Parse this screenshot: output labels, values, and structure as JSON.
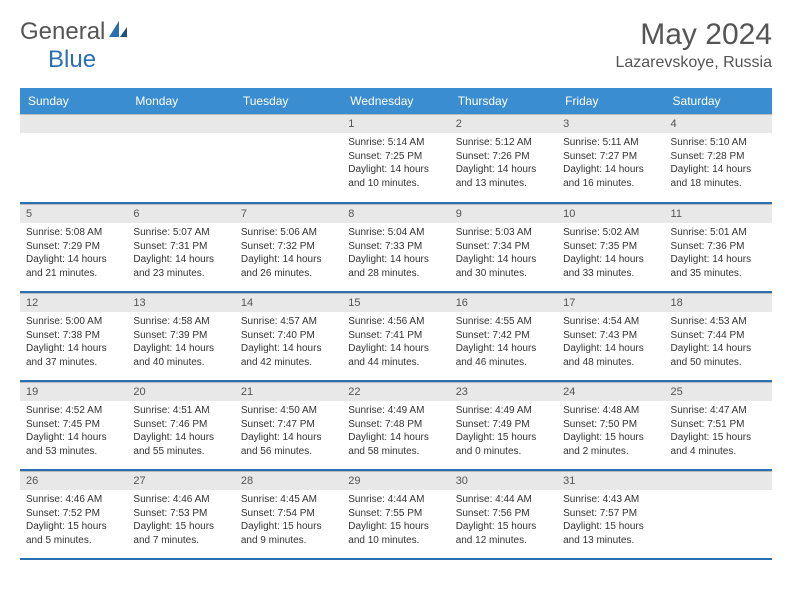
{
  "brand": {
    "general": "General",
    "blue": "Blue"
  },
  "title": "May 2024",
  "location": "Lazarevskoye, Russia",
  "colors": {
    "header_bg": "#3a8dd0",
    "header_text": "#ffffff",
    "daynum_bg": "#e8e8e8",
    "separator": "#2b6fb0",
    "body_text": "#333333",
    "title_text": "#555555",
    "brand_blue": "#2b6fb0",
    "brand_gray": "#555555"
  },
  "day_headers": [
    "Sunday",
    "Monday",
    "Tuesday",
    "Wednesday",
    "Thursday",
    "Friday",
    "Saturday"
  ],
  "weeks": [
    [
      {
        "n": "",
        "sr": "",
        "ss": "",
        "dl": ""
      },
      {
        "n": "",
        "sr": "",
        "ss": "",
        "dl": ""
      },
      {
        "n": "",
        "sr": "",
        "ss": "",
        "dl": ""
      },
      {
        "n": "1",
        "sr": "Sunrise: 5:14 AM",
        "ss": "Sunset: 7:25 PM",
        "dl": "Daylight: 14 hours and 10 minutes."
      },
      {
        "n": "2",
        "sr": "Sunrise: 5:12 AM",
        "ss": "Sunset: 7:26 PM",
        "dl": "Daylight: 14 hours and 13 minutes."
      },
      {
        "n": "3",
        "sr": "Sunrise: 5:11 AM",
        "ss": "Sunset: 7:27 PM",
        "dl": "Daylight: 14 hours and 16 minutes."
      },
      {
        "n": "4",
        "sr": "Sunrise: 5:10 AM",
        "ss": "Sunset: 7:28 PM",
        "dl": "Daylight: 14 hours and 18 minutes."
      }
    ],
    [
      {
        "n": "5",
        "sr": "Sunrise: 5:08 AM",
        "ss": "Sunset: 7:29 PM",
        "dl": "Daylight: 14 hours and 21 minutes."
      },
      {
        "n": "6",
        "sr": "Sunrise: 5:07 AM",
        "ss": "Sunset: 7:31 PM",
        "dl": "Daylight: 14 hours and 23 minutes."
      },
      {
        "n": "7",
        "sr": "Sunrise: 5:06 AM",
        "ss": "Sunset: 7:32 PM",
        "dl": "Daylight: 14 hours and 26 minutes."
      },
      {
        "n": "8",
        "sr": "Sunrise: 5:04 AM",
        "ss": "Sunset: 7:33 PM",
        "dl": "Daylight: 14 hours and 28 minutes."
      },
      {
        "n": "9",
        "sr": "Sunrise: 5:03 AM",
        "ss": "Sunset: 7:34 PM",
        "dl": "Daylight: 14 hours and 30 minutes."
      },
      {
        "n": "10",
        "sr": "Sunrise: 5:02 AM",
        "ss": "Sunset: 7:35 PM",
        "dl": "Daylight: 14 hours and 33 minutes."
      },
      {
        "n": "11",
        "sr": "Sunrise: 5:01 AM",
        "ss": "Sunset: 7:36 PM",
        "dl": "Daylight: 14 hours and 35 minutes."
      }
    ],
    [
      {
        "n": "12",
        "sr": "Sunrise: 5:00 AM",
        "ss": "Sunset: 7:38 PM",
        "dl": "Daylight: 14 hours and 37 minutes."
      },
      {
        "n": "13",
        "sr": "Sunrise: 4:58 AM",
        "ss": "Sunset: 7:39 PM",
        "dl": "Daylight: 14 hours and 40 minutes."
      },
      {
        "n": "14",
        "sr": "Sunrise: 4:57 AM",
        "ss": "Sunset: 7:40 PM",
        "dl": "Daylight: 14 hours and 42 minutes."
      },
      {
        "n": "15",
        "sr": "Sunrise: 4:56 AM",
        "ss": "Sunset: 7:41 PM",
        "dl": "Daylight: 14 hours and 44 minutes."
      },
      {
        "n": "16",
        "sr": "Sunrise: 4:55 AM",
        "ss": "Sunset: 7:42 PM",
        "dl": "Daylight: 14 hours and 46 minutes."
      },
      {
        "n": "17",
        "sr": "Sunrise: 4:54 AM",
        "ss": "Sunset: 7:43 PM",
        "dl": "Daylight: 14 hours and 48 minutes."
      },
      {
        "n": "18",
        "sr": "Sunrise: 4:53 AM",
        "ss": "Sunset: 7:44 PM",
        "dl": "Daylight: 14 hours and 50 minutes."
      }
    ],
    [
      {
        "n": "19",
        "sr": "Sunrise: 4:52 AM",
        "ss": "Sunset: 7:45 PM",
        "dl": "Daylight: 14 hours and 53 minutes."
      },
      {
        "n": "20",
        "sr": "Sunrise: 4:51 AM",
        "ss": "Sunset: 7:46 PM",
        "dl": "Daylight: 14 hours and 55 minutes."
      },
      {
        "n": "21",
        "sr": "Sunrise: 4:50 AM",
        "ss": "Sunset: 7:47 PM",
        "dl": "Daylight: 14 hours and 56 minutes."
      },
      {
        "n": "22",
        "sr": "Sunrise: 4:49 AM",
        "ss": "Sunset: 7:48 PM",
        "dl": "Daylight: 14 hours and 58 minutes."
      },
      {
        "n": "23",
        "sr": "Sunrise: 4:49 AM",
        "ss": "Sunset: 7:49 PM",
        "dl": "Daylight: 15 hours and 0 minutes."
      },
      {
        "n": "24",
        "sr": "Sunrise: 4:48 AM",
        "ss": "Sunset: 7:50 PM",
        "dl": "Daylight: 15 hours and 2 minutes."
      },
      {
        "n": "25",
        "sr": "Sunrise: 4:47 AM",
        "ss": "Sunset: 7:51 PM",
        "dl": "Daylight: 15 hours and 4 minutes."
      }
    ],
    [
      {
        "n": "26",
        "sr": "Sunrise: 4:46 AM",
        "ss": "Sunset: 7:52 PM",
        "dl": "Daylight: 15 hours and 5 minutes."
      },
      {
        "n": "27",
        "sr": "Sunrise: 4:46 AM",
        "ss": "Sunset: 7:53 PM",
        "dl": "Daylight: 15 hours and 7 minutes."
      },
      {
        "n": "28",
        "sr": "Sunrise: 4:45 AM",
        "ss": "Sunset: 7:54 PM",
        "dl": "Daylight: 15 hours and 9 minutes."
      },
      {
        "n": "29",
        "sr": "Sunrise: 4:44 AM",
        "ss": "Sunset: 7:55 PM",
        "dl": "Daylight: 15 hours and 10 minutes."
      },
      {
        "n": "30",
        "sr": "Sunrise: 4:44 AM",
        "ss": "Sunset: 7:56 PM",
        "dl": "Daylight: 15 hours and 12 minutes."
      },
      {
        "n": "31",
        "sr": "Sunrise: 4:43 AM",
        "ss": "Sunset: 7:57 PM",
        "dl": "Daylight: 15 hours and 13 minutes."
      },
      {
        "n": "",
        "sr": "",
        "ss": "",
        "dl": ""
      }
    ]
  ]
}
